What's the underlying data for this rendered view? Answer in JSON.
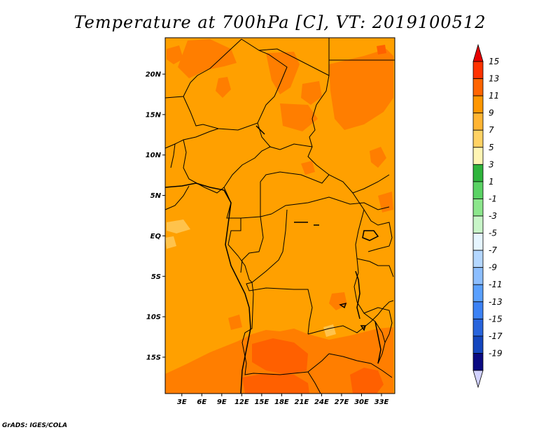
{
  "title": "Temperature at 700hPa [C], VT: 2019100512",
  "credit": "GrADS: IGES/COLA",
  "map": {
    "lat_labels": [
      "20N",
      "15N",
      "10N",
      "5N",
      "EQ",
      "5S",
      "10S",
      "15S"
    ],
    "lat_values": [
      20,
      15,
      10,
      5,
      0,
      -5,
      -10,
      -15
    ],
    "lon_labels": [
      "3E",
      "6E",
      "9E",
      "12E",
      "15E",
      "18E",
      "21E",
      "24E",
      "27E",
      "30E",
      "33E"
    ],
    "lon_values": [
      3,
      6,
      9,
      12,
      15,
      18,
      21,
      24,
      27,
      30,
      33
    ],
    "lon_range": [
      0.5,
      35
    ],
    "lat_range": [
      -19.5,
      24.5
    ],
    "dominant_color": "#ff9f00"
  },
  "colorbar": {
    "labels": [
      "15",
      "13",
      "11",
      "9",
      "7",
      "5",
      "3",
      "1",
      "-1",
      "-3",
      "-5",
      "-7",
      "-9",
      "-11",
      "-13",
      "-15",
      "-17",
      "-19"
    ],
    "colors": [
      "#ff3200",
      "#ff6400",
      "#ff9600",
      "#ffb432",
      "#ffd264",
      "#fff5b4",
      "#2fb43c",
      "#5ad264",
      "#8ce68c",
      "#c8f5c8",
      "#e6f5ff",
      "#b4d7ff",
      "#8cbeff",
      "#5aa0ff",
      "#3c82f5",
      "#2864dc",
      "#1446be",
      "#0a0a82"
    ],
    "top_arrow_color": "#e60000",
    "bottom_arrow_color": "#d2d2ff"
  }
}
